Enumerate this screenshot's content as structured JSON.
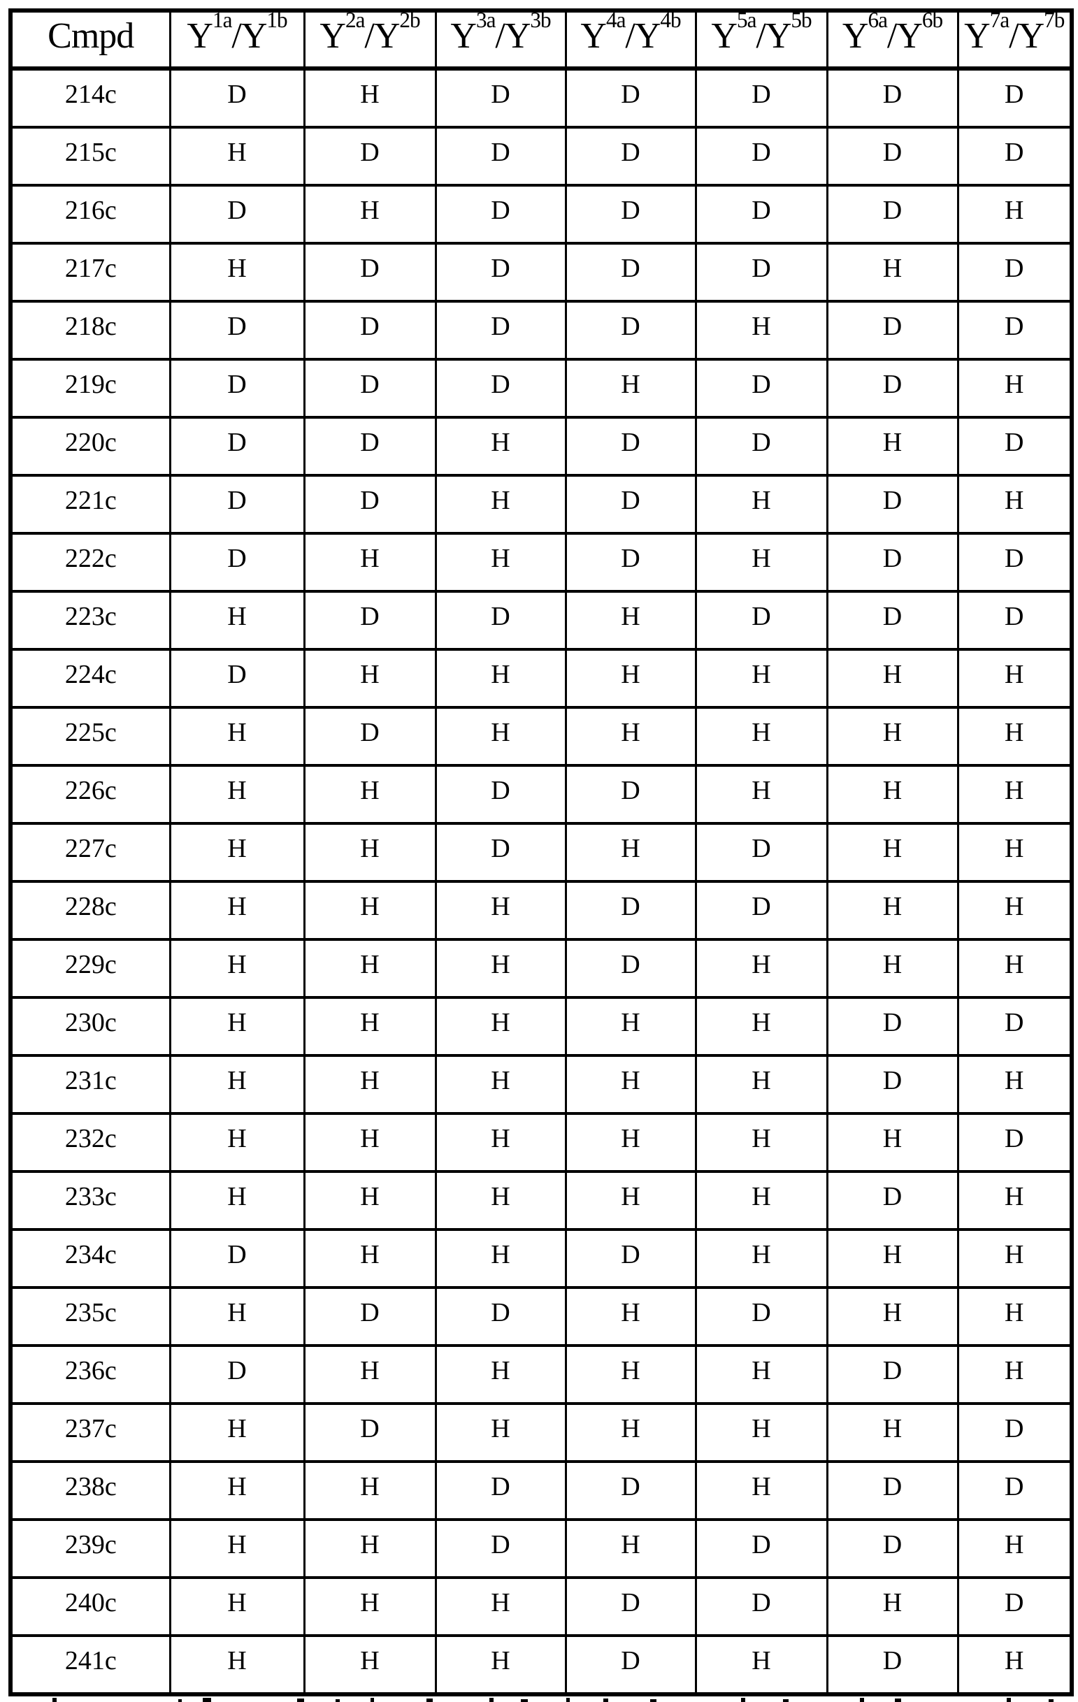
{
  "document": {
    "kind": "scanned-table-page",
    "ink_color": "#000000",
    "paper_color": "#ffffff"
  },
  "table": {
    "header": [
      {
        "parts": [
          {
            "t": "Cmpd"
          }
        ]
      },
      {
        "parts": [
          {
            "t": "Y"
          },
          {
            "t": "1a",
            "sup": true
          },
          {
            "t": "/Y"
          },
          {
            "t": "1b",
            "sup": true
          }
        ]
      },
      {
        "parts": [
          {
            "t": "Y"
          },
          {
            "t": "2a",
            "sup": true
          },
          {
            "t": "/Y"
          },
          {
            "t": "2b",
            "sup": true
          }
        ]
      },
      {
        "parts": [
          {
            "t": "Y"
          },
          {
            "t": "3a",
            "sup": true
          },
          {
            "t": "/Y"
          },
          {
            "t": "3b",
            "sup": true
          }
        ]
      },
      {
        "parts": [
          {
            "t": "Y"
          },
          {
            "t": "4a",
            "sup": true
          },
          {
            "t": "/Y"
          },
          {
            "t": "4b",
            "sup": true
          }
        ]
      },
      {
        "parts": [
          {
            "t": "Y"
          },
          {
            "t": "5a",
            "sup": true
          },
          {
            "t": "/Y"
          },
          {
            "t": "5b",
            "sup": true
          }
        ]
      },
      {
        "parts": [
          {
            "t": "Y"
          },
          {
            "t": "6a",
            "sup": true
          },
          {
            "t": "/Y"
          },
          {
            "t": "6b",
            "sup": true
          }
        ]
      },
      {
        "parts": [
          {
            "t": "Y"
          },
          {
            "t": "7a",
            "sup": true
          },
          {
            "t": "/Y"
          },
          {
            "t": "7b",
            "sup": true
          }
        ]
      }
    ],
    "rows": [
      {
        "cmpd": "214c",
        "values": [
          "D",
          "H",
          "D",
          "D",
          "D",
          "D",
          "D"
        ]
      },
      {
        "cmpd": "215c",
        "values": [
          "H",
          "D",
          "D",
          "D",
          "D",
          "D",
          "D"
        ]
      },
      {
        "cmpd": "216c",
        "values": [
          "D",
          "H",
          "D",
          "D",
          "D",
          "D",
          "H"
        ]
      },
      {
        "cmpd": "217c",
        "values": [
          "H",
          "D",
          "D",
          "D",
          "D",
          "H",
          "D"
        ]
      },
      {
        "cmpd": "218c",
        "values": [
          "D",
          "D",
          "D",
          "D",
          "H",
          "D",
          "D"
        ]
      },
      {
        "cmpd": "219c",
        "values": [
          "D",
          "D",
          "D",
          "H",
          "D",
          "D",
          "H"
        ]
      },
      {
        "cmpd": "220c",
        "values": [
          "D",
          "D",
          "H",
          "D",
          "D",
          "H",
          "D"
        ]
      },
      {
        "cmpd": "221c",
        "values": [
          "D",
          "D",
          "H",
          "D",
          "H",
          "D",
          "H"
        ]
      },
      {
        "cmpd": "222c",
        "values": [
          "D",
          "H",
          "H",
          "D",
          "H",
          "D",
          "D"
        ]
      },
      {
        "cmpd": "223c",
        "values": [
          "H",
          "D",
          "D",
          "H",
          "D",
          "D",
          "D"
        ]
      },
      {
        "cmpd": "224c",
        "values": [
          "D",
          "H",
          "H",
          "H",
          "H",
          "H",
          "H"
        ]
      },
      {
        "cmpd": "225c",
        "values": [
          "H",
          "D",
          "H",
          "H",
          "H",
          "H",
          "H"
        ]
      },
      {
        "cmpd": "226c",
        "values": [
          "H",
          "H",
          "D",
          "D",
          "H",
          "H",
          "H"
        ]
      },
      {
        "cmpd": "227c",
        "values": [
          "H",
          "H",
          "D",
          "H",
          "D",
          "H",
          "H"
        ]
      },
      {
        "cmpd": "228c",
        "values": [
          "H",
          "H",
          "H",
          "D",
          "D",
          "H",
          "H"
        ]
      },
      {
        "cmpd": "229c",
        "values": [
          "H",
          "H",
          "H",
          "D",
          "H",
          "H",
          "H"
        ]
      },
      {
        "cmpd": "230c",
        "values": [
          "H",
          "H",
          "H",
          "H",
          "H",
          "D",
          "D"
        ]
      },
      {
        "cmpd": "231c",
        "values": [
          "H",
          "H",
          "H",
          "H",
          "H",
          "D",
          "H"
        ]
      },
      {
        "cmpd": "232c",
        "values": [
          "H",
          "H",
          "H",
          "H",
          "H",
          "H",
          "D"
        ]
      },
      {
        "cmpd": "233c",
        "values": [
          "H",
          "H",
          "H",
          "H",
          "H",
          "D",
          "H"
        ]
      },
      {
        "cmpd": "234c",
        "values": [
          "D",
          "H",
          "H",
          "D",
          "H",
          "H",
          "H"
        ]
      },
      {
        "cmpd": "235c",
        "values": [
          "H",
          "D",
          "D",
          "H",
          "D",
          "H",
          "H"
        ]
      },
      {
        "cmpd": "236c",
        "values": [
          "D",
          "H",
          "H",
          "H",
          "H",
          "D",
          "H"
        ]
      },
      {
        "cmpd": "237c",
        "values": [
          "H",
          "D",
          "H",
          "H",
          "H",
          "H",
          "D"
        ]
      },
      {
        "cmpd": "238c",
        "values": [
          "H",
          "H",
          "D",
          "D",
          "H",
          "D",
          "D"
        ]
      },
      {
        "cmpd": "239c",
        "values": [
          "H",
          "H",
          "D",
          "H",
          "D",
          "D",
          "H"
        ]
      },
      {
        "cmpd": "240c",
        "values": [
          "H",
          "H",
          "H",
          "D",
          "D",
          "H",
          "D"
        ]
      },
      {
        "cmpd": "241c",
        "values": [
          "H",
          "H",
          "H",
          "D",
          "H",
          "D",
          "H"
        ]
      }
    ]
  }
}
